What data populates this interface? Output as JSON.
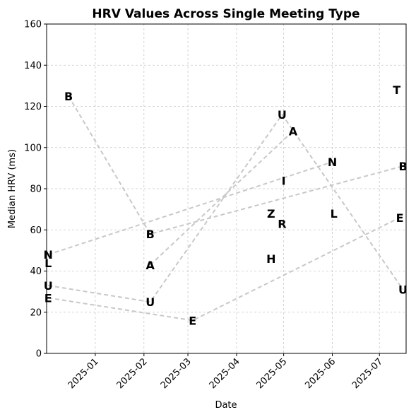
{
  "chart_data": {
    "type": "scatter",
    "title": "HRV Values Across Single Meeting Type",
    "xlabel": "Date",
    "ylabel": "Median HRV (ms)",
    "xlim": [
      "2024-12-01",
      "2025-07-18"
    ],
    "ylim": [
      0,
      160
    ],
    "x_ticks": [
      "2025-01",
      "2025-02",
      "2025-03",
      "2025-04",
      "2025-05",
      "2025-06",
      "2025-07"
    ],
    "y_ticks": [
      0,
      20,
      40,
      60,
      80,
      100,
      120,
      140,
      160
    ],
    "grid": true,
    "points": [
      {
        "label": "B",
        "x": "2024-12-15",
        "y": 125
      },
      {
        "label": "N",
        "x": "2024-12-02",
        "y": 48
      },
      {
        "label": "L",
        "x": "2024-12-02",
        "y": 44
      },
      {
        "label": "U",
        "x": "2024-12-02",
        "y": 33
      },
      {
        "label": "E",
        "x": "2024-12-02",
        "y": 27
      },
      {
        "label": "B",
        "x": "2025-02-05",
        "y": 58
      },
      {
        "label": "A",
        "x": "2025-02-05",
        "y": 43
      },
      {
        "label": "U",
        "x": "2025-02-05",
        "y": 25
      },
      {
        "label": "E",
        "x": "2025-03-04",
        "y": 16
      },
      {
        "label": "Z",
        "x": "2025-04-23",
        "y": 68
      },
      {
        "label": "H",
        "x": "2025-04-23",
        "y": 46
      },
      {
        "label": "R",
        "x": "2025-04-30",
        "y": 63
      },
      {
        "label": "I",
        "x": "2025-05-01",
        "y": 84
      },
      {
        "label": "U",
        "x": "2025-04-30",
        "y": 116
      },
      {
        "label": "A",
        "x": "2025-05-07",
        "y": 108
      },
      {
        "label": "N",
        "x": "2025-06-01",
        "y": 93
      },
      {
        "label": "L",
        "x": "2025-06-02",
        "y": 68
      },
      {
        "label": "T",
        "x": "2025-07-12",
        "y": 128
      },
      {
        "label": "B",
        "x": "2025-07-16",
        "y": 91
      },
      {
        "label": "E",
        "x": "2025-07-14",
        "y": 66
      },
      {
        "label": "U",
        "x": "2025-07-16",
        "y": 31
      }
    ],
    "series": [
      {
        "label": "B",
        "points": [
          {
            "x": "2024-12-15",
            "y": 125
          },
          {
            "x": "2025-02-05",
            "y": 58
          },
          {
            "x": "2025-07-16",
            "y": 91
          }
        ]
      },
      {
        "label": "N",
        "points": [
          {
            "x": "2024-12-02",
            "y": 48
          },
          {
            "x": "2025-06-01",
            "y": 93
          }
        ]
      },
      {
        "label": "U",
        "points": [
          {
            "x": "2024-12-02",
            "y": 33
          },
          {
            "x": "2025-02-05",
            "y": 25
          },
          {
            "x": "2025-04-30",
            "y": 116
          },
          {
            "x": "2025-07-16",
            "y": 31
          }
        ]
      },
      {
        "label": "E",
        "points": [
          {
            "x": "2024-12-02",
            "y": 27
          },
          {
            "x": "2025-03-04",
            "y": 16
          },
          {
            "x": "2025-07-14",
            "y": 66
          }
        ]
      },
      {
        "label": "A",
        "points": [
          {
            "x": "2025-02-05",
            "y": 43
          },
          {
            "x": "2025-05-07",
            "y": 108
          }
        ]
      }
    ]
  }
}
